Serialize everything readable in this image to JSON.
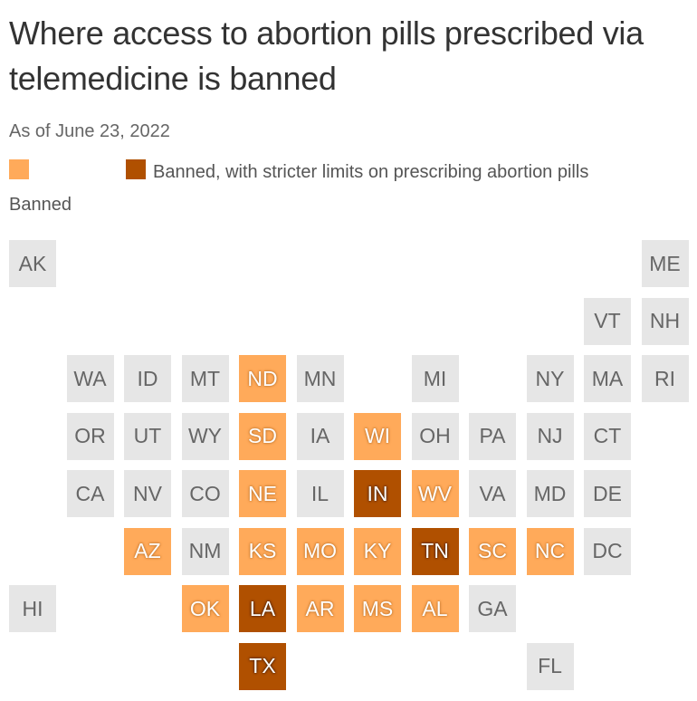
{
  "title": "Where access to abortion pills prescribed via telemedicine is banned",
  "subtitle": "As of June 23, 2022",
  "colors": {
    "none": "#e6e6e6",
    "banned": "#ffaa5a",
    "strict": "#b05000"
  },
  "legend": [
    {
      "label": "Banned",
      "category": "banned"
    },
    {
      "label": "Banned, with stricter limits on prescribing abortion pills",
      "category": "strict"
    }
  ],
  "states": [
    {
      "abbr": "AK",
      "row": 0,
      "col": 0,
      "status": "none"
    },
    {
      "abbr": "ME",
      "row": 0,
      "col": 11,
      "status": "none"
    },
    {
      "abbr": "VT",
      "row": 1,
      "col": 10,
      "status": "none"
    },
    {
      "abbr": "NH",
      "row": 1,
      "col": 11,
      "status": "none"
    },
    {
      "abbr": "WA",
      "row": 2,
      "col": 1,
      "status": "none"
    },
    {
      "abbr": "ID",
      "row": 2,
      "col": 2,
      "status": "none"
    },
    {
      "abbr": "MT",
      "row": 2,
      "col": 3,
      "status": "none"
    },
    {
      "abbr": "ND",
      "row": 2,
      "col": 4,
      "status": "banned"
    },
    {
      "abbr": "MN",
      "row": 2,
      "col": 5,
      "status": "none"
    },
    {
      "abbr": "MI",
      "row": 2,
      "col": 7,
      "status": "none"
    },
    {
      "abbr": "NY",
      "row": 2,
      "col": 9,
      "status": "none"
    },
    {
      "abbr": "MA",
      "row": 2,
      "col": 10,
      "status": "none"
    },
    {
      "abbr": "RI",
      "row": 2,
      "col": 11,
      "status": "none"
    },
    {
      "abbr": "OR",
      "row": 3,
      "col": 1,
      "status": "none"
    },
    {
      "abbr": "UT",
      "row": 3,
      "col": 2,
      "status": "none"
    },
    {
      "abbr": "WY",
      "row": 3,
      "col": 3,
      "status": "none"
    },
    {
      "abbr": "SD",
      "row": 3,
      "col": 4,
      "status": "banned"
    },
    {
      "abbr": "IA",
      "row": 3,
      "col": 5,
      "status": "none"
    },
    {
      "abbr": "WI",
      "row": 3,
      "col": 6,
      "status": "banned"
    },
    {
      "abbr": "OH",
      "row": 3,
      "col": 7,
      "status": "none"
    },
    {
      "abbr": "PA",
      "row": 3,
      "col": 8,
      "status": "none"
    },
    {
      "abbr": "NJ",
      "row": 3,
      "col": 9,
      "status": "none"
    },
    {
      "abbr": "CT",
      "row": 3,
      "col": 10,
      "status": "none"
    },
    {
      "abbr": "CA",
      "row": 4,
      "col": 1,
      "status": "none"
    },
    {
      "abbr": "NV",
      "row": 4,
      "col": 2,
      "status": "none"
    },
    {
      "abbr": "CO",
      "row": 4,
      "col": 3,
      "status": "none"
    },
    {
      "abbr": "NE",
      "row": 4,
      "col": 4,
      "status": "banned"
    },
    {
      "abbr": "IL",
      "row": 4,
      "col": 5,
      "status": "none"
    },
    {
      "abbr": "IN",
      "row": 4,
      "col": 6,
      "status": "strict"
    },
    {
      "abbr": "WV",
      "row": 4,
      "col": 7,
      "status": "banned"
    },
    {
      "abbr": "VA",
      "row": 4,
      "col": 8,
      "status": "none"
    },
    {
      "abbr": "MD",
      "row": 4,
      "col": 9,
      "status": "none"
    },
    {
      "abbr": "DE",
      "row": 4,
      "col": 10,
      "status": "none"
    },
    {
      "abbr": "AZ",
      "row": 5,
      "col": 2,
      "status": "banned"
    },
    {
      "abbr": "NM",
      "row": 5,
      "col": 3,
      "status": "none"
    },
    {
      "abbr": "KS",
      "row": 5,
      "col": 4,
      "status": "banned"
    },
    {
      "abbr": "MO",
      "row": 5,
      "col": 5,
      "status": "banned"
    },
    {
      "abbr": "KY",
      "row": 5,
      "col": 6,
      "status": "banned"
    },
    {
      "abbr": "TN",
      "row": 5,
      "col": 7,
      "status": "strict"
    },
    {
      "abbr": "SC",
      "row": 5,
      "col": 8,
      "status": "banned"
    },
    {
      "abbr": "NC",
      "row": 5,
      "col": 9,
      "status": "banned"
    },
    {
      "abbr": "DC",
      "row": 5,
      "col": 10,
      "status": "none"
    },
    {
      "abbr": "HI",
      "row": 6,
      "col": 0,
      "status": "none"
    },
    {
      "abbr": "OK",
      "row": 6,
      "col": 3,
      "status": "banned"
    },
    {
      "abbr": "LA",
      "row": 6,
      "col": 4,
      "status": "strict"
    },
    {
      "abbr": "AR",
      "row": 6,
      "col": 5,
      "status": "banned"
    },
    {
      "abbr": "MS",
      "row": 6,
      "col": 6,
      "status": "banned"
    },
    {
      "abbr": "AL",
      "row": 6,
      "col": 7,
      "status": "banned"
    },
    {
      "abbr": "GA",
      "row": 6,
      "col": 8,
      "status": "none"
    },
    {
      "abbr": "TX",
      "row": 7,
      "col": 4,
      "status": "strict"
    },
    {
      "abbr": "FL",
      "row": 7,
      "col": 9,
      "status": "none"
    }
  ]
}
